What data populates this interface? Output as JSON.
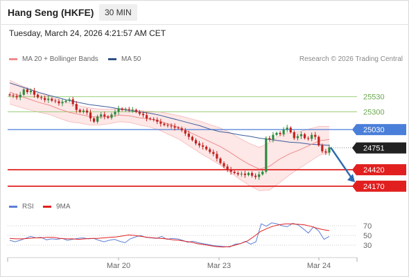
{
  "header": {
    "title": "Hang Seng (HKFE)",
    "interval": "30 MIN",
    "timestamp": "Tuesday, March 24, 2026 4:21:57 AM CET"
  },
  "legend": {
    "items": [
      {
        "label": "MA 20 + Bollinger Bands",
        "color": "#f08a8a"
      },
      {
        "label": "MA 50",
        "color": "#2f4f86"
      }
    ],
    "credit": "Research © 2026 Trading Central"
  },
  "rsi_legend": {
    "items": [
      {
        "label": "RSI",
        "color": "#5b7fd6"
      },
      {
        "label": "9MA",
        "color": "#e21f1f"
      }
    ]
  },
  "colors": {
    "up_candle": "#2e8b3d",
    "down_candle": "#c0221f",
    "support": "#e21f1f",
    "resistance": "#9bcf7a",
    "pivot": "#4a7fd9",
    "current": "#222222",
    "band_fill": "#fde3e3",
    "ma20": "#f08a8a",
    "ma50": "#3b5a9a",
    "forecast_arrow": "#2d6bb0"
  },
  "chart_data": [
    {
      "type": "line",
      "title": "Hang Seng (HKFE)",
      "x_tick_labels": [
        "Mar 20",
        "Mar 23",
        "Mar 24"
      ],
      "price_axis_range": [
        24000,
        26000
      ],
      "levels": [
        {
          "value": 25530,
          "label": "25530",
          "kind": "resistance"
        },
        {
          "value": 25300,
          "label": "25300",
          "kind": "resistance"
        },
        {
          "value": 25030,
          "label": "25030",
          "kind": "pivot"
        },
        {
          "value": 24751,
          "label": "24751",
          "kind": "current"
        },
        {
          "value": 24420,
          "label": "24420",
          "kind": "support"
        },
        {
          "value": 24170,
          "label": "24170",
          "kind": "support"
        }
      ],
      "close_series": [
        25550,
        25540,
        25520,
        25560,
        25640,
        25600,
        25620,
        25560,
        25520,
        25510,
        25480,
        25500,
        25470,
        25460,
        25430,
        25450,
        25470,
        25490,
        25420,
        25330,
        25300,
        25320,
        25290,
        25200,
        25150,
        25230,
        25260,
        25230,
        25210,
        25260,
        25300,
        25350,
        25330,
        25340,
        25330,
        25330,
        25300,
        25270,
        25250,
        25200,
        25190,
        25180,
        25150,
        25120,
        25100,
        25090,
        25080,
        25060,
        25050,
        25020,
        24970,
        24920,
        24870,
        24820,
        24790,
        24770,
        24730,
        24690,
        24660,
        24590,
        24520,
        24470,
        24420,
        24390,
        24370,
        24350,
        24360,
        24340,
        24370,
        24330,
        24310,
        24350,
        24390,
        24900,
        24880,
        24950,
        24980,
        24960,
        25030,
        25060,
        24990,
        24900,
        24930,
        24960,
        24900,
        24890,
        24950,
        24920,
        24790,
        24700,
        24680,
        24760
      ],
      "series": [
        {
          "name": "MA 50",
          "values": [
            25740,
            25690,
            25640,
            25590,
            25550,
            25510,
            25470,
            25440,
            25410,
            25390,
            25370,
            25345,
            25320,
            25300,
            25280,
            25250,
            25210,
            25170,
            25130,
            25090,
            25040,
            25000,
            24980,
            24950,
            24930,
            24900,
            24880,
            24860,
            24840,
            24830,
            24810,
            24800,
            24790
          ]
        },
        {
          "name": "MA 20",
          "values": [
            25600,
            25540,
            25490,
            25440,
            25400,
            25340,
            25290,
            25260,
            25230,
            25220,
            25230,
            25250,
            25240,
            25210,
            25190,
            25160,
            25110,
            25060,
            24990,
            24920,
            24850,
            24780,
            24690,
            24590,
            24500,
            24430,
            24470,
            24580,
            24660,
            24720,
            24790,
            24860,
            24880
          ]
        }
      ]
    },
    {
      "type": "line",
      "title": "RSI",
      "y_tick_labels": [
        "70",
        "50",
        "30"
      ],
      "ylim": [
        10,
        90
      ],
      "series": [
        {
          "name": "RSI",
          "values": [
            40,
            37,
            40,
            44,
            48,
            45,
            46,
            41,
            43,
            42,
            44,
            40,
            42,
            44,
            45,
            43,
            44,
            40,
            37,
            40,
            42,
            38,
            35,
            43,
            47,
            50,
            46,
            45,
            44,
            48,
            42,
            44,
            43,
            40,
            36,
            38,
            35,
            33,
            31,
            29,
            28,
            27,
            26,
            32,
            33,
            38,
            32,
            37,
            74,
            69,
            76,
            74,
            70,
            68,
            75,
            72,
            64,
            55,
            68,
            59,
            42,
            48
          ]
        },
        {
          "name": "9MA",
          "values": [
            44,
            43,
            43,
            44,
            45,
            45,
            46,
            46,
            44,
            43,
            43,
            42,
            43,
            44,
            44,
            45,
            46,
            47,
            49,
            51,
            50,
            48,
            46,
            45,
            44,
            43,
            41,
            40,
            38,
            36,
            33,
            31,
            29,
            27,
            26,
            27,
            30,
            34,
            39,
            48,
            58,
            64,
            69,
            72,
            74,
            74,
            73,
            72,
            69,
            65,
            62,
            60
          ]
        }
      ]
    }
  ]
}
